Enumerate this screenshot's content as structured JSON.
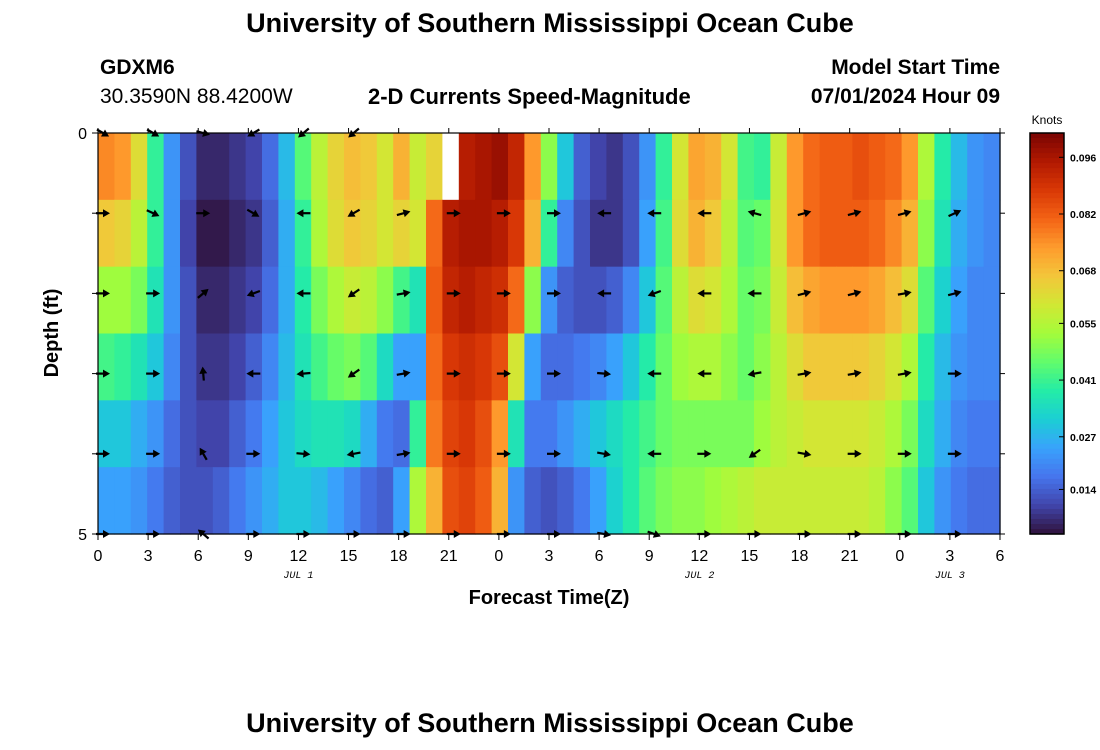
{
  "page": {
    "title": "University of Southern Mississippi Ocean Cube",
    "title_repeat": "University of Southern Mississippi Ocean Cube",
    "station": "GDXM6",
    "coords": "30.3590N  88.4200W",
    "subtitle": "2-D Currents Speed-Magnitude",
    "model_start_label": "Model Start Time",
    "model_start_value": "07/01/2024 Hour 09"
  },
  "chart_data": {
    "type": "heatmap",
    "title": "2-D Currents Speed-Magnitude",
    "xlabel": "Forecast Time(Z)",
    "ylabel": "Depth (ft)",
    "x_tick_labels": [
      "0",
      "3",
      "6",
      "9",
      "12",
      "15",
      "18",
      "21",
      "0",
      "3",
      "6",
      "9",
      "12",
      "15",
      "18",
      "21",
      "0",
      "3",
      "6"
    ],
    "date_labels": [
      {
        "label": "JUL 1",
        "hour": 12
      },
      {
        "label": "JUL 2",
        "hour": 36
      },
      {
        "label": "JUL 3",
        "hour": 51
      }
    ],
    "y_tick_labels": [
      "0",
      "5"
    ],
    "xlim": [
      0,
      54
    ],
    "ylim": [
      0,
      5
    ],
    "colorbar": {
      "label": "Knots",
      "ticks": [
        0.096,
        0.082,
        0.068,
        0.055,
        0.041,
        0.027,
        0.014
      ],
      "range": [
        0.003,
        0.102
      ],
      "colors": [
        "#30123b",
        "#4145ab",
        "#4675ed",
        "#39a2fc",
        "#1bcfd4",
        "#24eca6",
        "#61fc6c",
        "#a4fc3b",
        "#d1e834",
        "#f3c63a",
        "#fe9b2d",
        "#f36315",
        "#d93806",
        "#b11901",
        "#7a0403"
      ]
    },
    "hours": [
      0,
      1,
      2,
      3,
      4,
      5,
      6,
      7,
      8,
      9,
      10,
      11,
      12,
      13,
      14,
      15,
      16,
      17,
      18,
      19,
      20,
      21,
      22,
      23,
      24,
      25,
      26,
      27,
      28,
      29,
      30,
      31,
      32,
      33,
      34,
      35,
      36,
      37,
      38,
      39,
      40,
      41,
      42,
      43,
      44,
      45,
      46,
      47,
      48,
      49,
      50,
      51,
      52,
      53,
      54
    ],
    "depths": [
      0,
      1,
      2,
      3,
      4,
      5
    ],
    "speed": [
      [
        0.076,
        0.074,
        0.062,
        0.04,
        0.022,
        0.012,
        0.006,
        0.006,
        0.008,
        0.01,
        0.016,
        0.028,
        0.044,
        0.056,
        0.064,
        0.068,
        0.066,
        0.06,
        0.07,
        0.058,
        0.064,
        0.09,
        0.094,
        0.096,
        0.098,
        0.092,
        0.074,
        0.05,
        0.03,
        0.014,
        0.01,
        0.008,
        0.012,
        0.022,
        0.04,
        0.06,
        0.072,
        0.07,
        0.06,
        0.042,
        0.04,
        0.058,
        0.074,
        0.08,
        0.082,
        0.082,
        0.084,
        0.082,
        0.08,
        0.074,
        0.054,
        0.038,
        0.028,
        0.022,
        0.02
      ],
      [
        0.066,
        0.064,
        0.056,
        0.04,
        0.022,
        0.01,
        0.004,
        0.004,
        0.006,
        0.008,
        0.014,
        0.026,
        0.04,
        0.054,
        0.062,
        0.066,
        0.064,
        0.06,
        0.064,
        0.06,
        0.08,
        0.094,
        0.096,
        0.096,
        0.094,
        0.088,
        0.07,
        0.04,
        0.02,
        0.012,
        0.008,
        0.008,
        0.012,
        0.024,
        0.042,
        0.062,
        0.07,
        0.066,
        0.056,
        0.044,
        0.046,
        0.06,
        0.074,
        0.08,
        0.082,
        0.082,
        0.082,
        0.08,
        0.076,
        0.07,
        0.05,
        0.036,
        0.026,
        0.022,
        0.02
      ],
      [
        0.052,
        0.052,
        0.048,
        0.036,
        0.022,
        0.012,
        0.006,
        0.006,
        0.008,
        0.01,
        0.016,
        0.026,
        0.038,
        0.048,
        0.054,
        0.058,
        0.056,
        0.05,
        0.042,
        0.036,
        0.082,
        0.092,
        0.094,
        0.092,
        0.09,
        0.08,
        0.05,
        0.022,
        0.014,
        0.012,
        0.012,
        0.014,
        0.02,
        0.03,
        0.044,
        0.056,
        0.062,
        0.06,
        0.054,
        0.046,
        0.048,
        0.058,
        0.068,
        0.072,
        0.074,
        0.074,
        0.074,
        0.072,
        0.068,
        0.062,
        0.044,
        0.032,
        0.024,
        0.02,
        0.02
      ],
      [
        0.042,
        0.04,
        0.036,
        0.03,
        0.02,
        0.012,
        0.008,
        0.008,
        0.01,
        0.014,
        0.02,
        0.028,
        0.036,
        0.042,
        0.046,
        0.048,
        0.044,
        0.034,
        0.024,
        0.024,
        0.08,
        0.088,
        0.09,
        0.088,
        0.084,
        0.06,
        0.024,
        0.016,
        0.016,
        0.018,
        0.02,
        0.024,
        0.03,
        0.038,
        0.046,
        0.052,
        0.054,
        0.054,
        0.05,
        0.046,
        0.05,
        0.056,
        0.062,
        0.066,
        0.066,
        0.066,
        0.066,
        0.064,
        0.06,
        0.054,
        0.038,
        0.028,
        0.022,
        0.02,
        0.02
      ],
      [
        0.03,
        0.03,
        0.026,
        0.022,
        0.016,
        0.012,
        0.01,
        0.01,
        0.014,
        0.018,
        0.024,
        0.03,
        0.034,
        0.036,
        0.036,
        0.034,
        0.026,
        0.018,
        0.016,
        0.04,
        0.078,
        0.086,
        0.088,
        0.084,
        0.074,
        0.036,
        0.018,
        0.018,
        0.022,
        0.026,
        0.03,
        0.034,
        0.038,
        0.042,
        0.046,
        0.048,
        0.048,
        0.048,
        0.048,
        0.048,
        0.052,
        0.056,
        0.058,
        0.06,
        0.06,
        0.06,
        0.06,
        0.058,
        0.054,
        0.048,
        0.034,
        0.026,
        0.02,
        0.018,
        0.018
      ],
      [
        0.024,
        0.024,
        0.022,
        0.018,
        0.014,
        0.012,
        0.012,
        0.014,
        0.018,
        0.022,
        0.026,
        0.03,
        0.03,
        0.028,
        0.024,
        0.02,
        0.016,
        0.014,
        0.024,
        0.054,
        0.07,
        0.084,
        0.086,
        0.082,
        0.07,
        0.022,
        0.014,
        0.012,
        0.014,
        0.018,
        0.024,
        0.032,
        0.038,
        0.044,
        0.048,
        0.05,
        0.05,
        0.052,
        0.054,
        0.056,
        0.058,
        0.058,
        0.058,
        0.058,
        0.058,
        0.058,
        0.058,
        0.056,
        0.05,
        0.044,
        0.03,
        0.022,
        0.018,
        0.016,
        0.016
      ]
    ],
    "missing_cells": [
      {
        "hour": 21,
        "depth": 0
      }
    ],
    "arrow_hours": [
      0,
      3,
      6,
      9,
      12,
      15,
      18,
      21,
      24,
      27,
      30,
      33,
      36,
      39,
      42,
      45,
      48,
      51
    ],
    "arrow_depths": [
      0,
      1,
      2,
      3,
      4,
      5
    ],
    "arrow_dir_deg": [
      [
        -30,
        -30,
        -15,
        -150,
        -140,
        -140,
        null,
        null,
        null,
        null,
        null,
        null,
        null,
        null,
        null,
        null,
        null,
        null
      ],
      [
        0,
        -25,
        0,
        -30,
        -180,
        -150,
        15,
        0,
        0,
        0,
        -180,
        180,
        180,
        165,
        15,
        15,
        15,
        25
      ],
      [
        0,
        0,
        40,
        -160,
        180,
        -145,
        10,
        0,
        0,
        0,
        -180,
        -160,
        180,
        180,
        15,
        15,
        10,
        15
      ],
      [
        0,
        0,
        95,
        180,
        -175,
        -145,
        10,
        0,
        0,
        0,
        -5,
        -180,
        -180,
        -170,
        10,
        10,
        10,
        0
      ],
      [
        0,
        0,
        120,
        0,
        -5,
        -170,
        10,
        0,
        0,
        0,
        -10,
        -180,
        0,
        -145,
        -10,
        0,
        0,
        0
      ],
      [
        0,
        0,
        140,
        0,
        0,
        0,
        0,
        0,
        0,
        0,
        -10,
        -20,
        0,
        0,
        0,
        0,
        0,
        0
      ]
    ]
  }
}
